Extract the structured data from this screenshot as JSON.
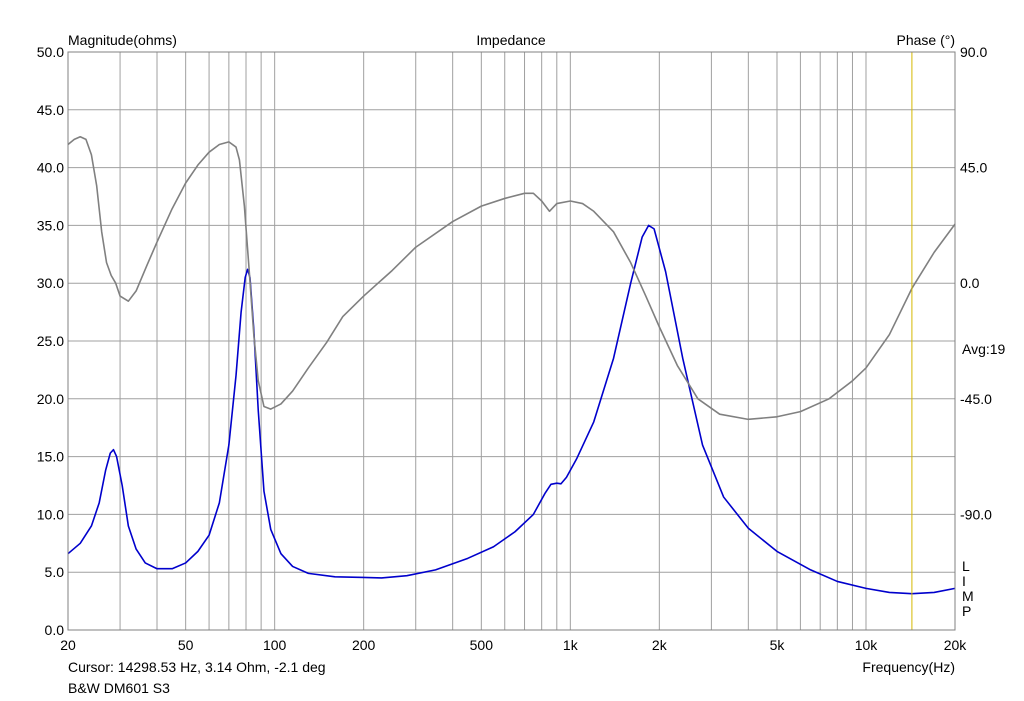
{
  "chart_data": {
    "type": "line",
    "title": "Impedance",
    "xlabel": "Frequency(Hz)",
    "ylabel": "Magnitude(ohms)",
    "y2label": "Phase (°)",
    "x_scale": "log",
    "xlim": [
      20,
      20000
    ],
    "ylim": [
      0,
      50
    ],
    "y2lim": [
      -135,
      90
    ],
    "grid": true,
    "x_ticks": [
      {
        "v": 20,
        "label": "20"
      },
      {
        "v": 50,
        "label": "50"
      },
      {
        "v": 100,
        "label": "100"
      },
      {
        "v": 200,
        "label": "200"
      },
      {
        "v": 500,
        "label": "500"
      },
      {
        "v": 1000,
        "label": "1k"
      },
      {
        "v": 2000,
        "label": "2k"
      },
      {
        "v": 5000,
        "label": "5k"
      },
      {
        "v": 10000,
        "label": "10k"
      },
      {
        "v": 20000,
        "label": "20k"
      }
    ],
    "y_ticks": [
      "0.0",
      "5.0",
      "10.0",
      "15.0",
      "20.0",
      "25.0",
      "30.0",
      "35.0",
      "40.0",
      "45.0",
      "50.0"
    ],
    "y2_ticks": [
      {
        "v": 90,
        "label": "90.0"
      },
      {
        "v": 45,
        "label": "45.0"
      },
      {
        "v": 0,
        "label": "0.0"
      },
      {
        "v": -45,
        "label": "-45.0"
      },
      {
        "v": -90,
        "label": "-90.0"
      }
    ],
    "avg_label": "Avg:19",
    "cursor_frequency": 14298.53,
    "side_letters": [
      "L",
      "I",
      "M",
      "P"
    ],
    "series": [
      {
        "axis": "left",
        "color": "#0000cc",
        "points": [
          [
            20,
            6.6
          ],
          [
            22,
            7.5
          ],
          [
            24,
            9.0
          ],
          [
            25.5,
            11.0
          ],
          [
            26.8,
            13.8
          ],
          [
            27.8,
            15.3
          ],
          [
            28.5,
            15.6
          ],
          [
            29.2,
            15.0
          ],
          [
            30.5,
            12.5
          ],
          [
            32,
            9.0
          ],
          [
            34,
            7.0
          ],
          [
            36.5,
            5.8
          ],
          [
            40,
            5.3
          ],
          [
            45,
            5.3
          ],
          [
            50,
            5.8
          ],
          [
            55,
            6.8
          ],
          [
            60,
            8.2
          ],
          [
            65,
            11.0
          ],
          [
            70,
            16.0
          ],
          [
            74,
            22.0
          ],
          [
            77,
            27.5
          ],
          [
            79.5,
            30.5
          ],
          [
            81,
            31.2
          ],
          [
            82.5,
            30.5
          ],
          [
            85,
            26.0
          ],
          [
            88,
            19.0
          ],
          [
            92,
            12.0
          ],
          [
            97,
            8.7
          ],
          [
            105,
            6.6
          ],
          [
            115,
            5.5
          ],
          [
            130,
            4.9
          ],
          [
            160,
            4.6
          ],
          [
            200,
            4.55
          ],
          [
            230,
            4.5
          ],
          [
            280,
            4.7
          ],
          [
            350,
            5.2
          ],
          [
            450,
            6.2
          ],
          [
            550,
            7.2
          ],
          [
            650,
            8.5
          ],
          [
            750,
            10.0
          ],
          [
            820,
            11.8
          ],
          [
            860,
            12.6
          ],
          [
            900,
            12.7
          ],
          [
            930,
            12.65
          ],
          [
            970,
            13.2
          ],
          [
            1050,
            14.8
          ],
          [
            1200,
            18.0
          ],
          [
            1400,
            23.5
          ],
          [
            1600,
            30.0
          ],
          [
            1750,
            34.0
          ],
          [
            1840,
            35.0
          ],
          [
            1920,
            34.7
          ],
          [
            2100,
            31.0
          ],
          [
            2400,
            23.5
          ],
          [
            2800,
            16.0
          ],
          [
            3300,
            11.5
          ],
          [
            4000,
            8.8
          ],
          [
            5000,
            6.8
          ],
          [
            6500,
            5.2
          ],
          [
            8000,
            4.2
          ],
          [
            10000,
            3.6
          ],
          [
            12000,
            3.25
          ],
          [
            14300,
            3.14
          ],
          [
            17000,
            3.25
          ],
          [
            20000,
            3.6
          ]
        ]
      },
      {
        "axis": "right",
        "color": "#808080",
        "points": [
          [
            20,
            54
          ],
          [
            21,
            56
          ],
          [
            22,
            57
          ],
          [
            23,
            56
          ],
          [
            24,
            50
          ],
          [
            25,
            38
          ],
          [
            26,
            20
          ],
          [
            27,
            8
          ],
          [
            28,
            3
          ],
          [
            29,
            0
          ],
          [
            30,
            -5
          ],
          [
            32,
            -7
          ],
          [
            34,
            -3
          ],
          [
            37,
            7
          ],
          [
            40,
            16
          ],
          [
            45,
            29
          ],
          [
            50,
            39
          ],
          [
            55,
            46
          ],
          [
            60,
            51
          ],
          [
            65,
            54
          ],
          [
            70,
            55
          ],
          [
            74,
            53
          ],
          [
            76,
            48
          ],
          [
            79,
            30
          ],
          [
            82,
            5
          ],
          [
            85,
            -20
          ],
          [
            88,
            -38
          ],
          [
            92,
            -48
          ],
          [
            97,
            -49
          ],
          [
            105,
            -47
          ],
          [
            115,
            -42
          ],
          [
            130,
            -33
          ],
          [
            150,
            -23
          ],
          [
            170,
            -13
          ],
          [
            200,
            -5
          ],
          [
            250,
            5
          ],
          [
            300,
            14
          ],
          [
            400,
            24
          ],
          [
            500,
            30
          ],
          [
            600,
            33
          ],
          [
            700,
            35
          ],
          [
            750,
            35
          ],
          [
            800,
            32
          ],
          [
            850,
            28
          ],
          [
            900,
            31
          ],
          [
            1000,
            32
          ],
          [
            1100,
            31
          ],
          [
            1200,
            28
          ],
          [
            1400,
            20
          ],
          [
            1600,
            8
          ],
          [
            1800,
            -5
          ],
          [
            2000,
            -17
          ],
          [
            2300,
            -32
          ],
          [
            2700,
            -45
          ],
          [
            3200,
            -51
          ],
          [
            4000,
            -53
          ],
          [
            5000,
            -52
          ],
          [
            6000,
            -50
          ],
          [
            7500,
            -45
          ],
          [
            9000,
            -38
          ],
          [
            10000,
            -33
          ],
          [
            12000,
            -20
          ],
          [
            14300,
            -2
          ],
          [
            17000,
            12
          ],
          [
            20000,
            23
          ]
        ]
      }
    ]
  },
  "info": {
    "cursor_line": "Cursor: 14298.53 Hz, 3.14 Ohm, -2.1 deg",
    "device_name": "B&W DM601 S3"
  },
  "colors": {
    "plot_border": "#808080",
    "grid": "#a0a0a0",
    "magnitude": "#0000cc",
    "phase": "#808080",
    "cursor": "#d4b800"
  }
}
